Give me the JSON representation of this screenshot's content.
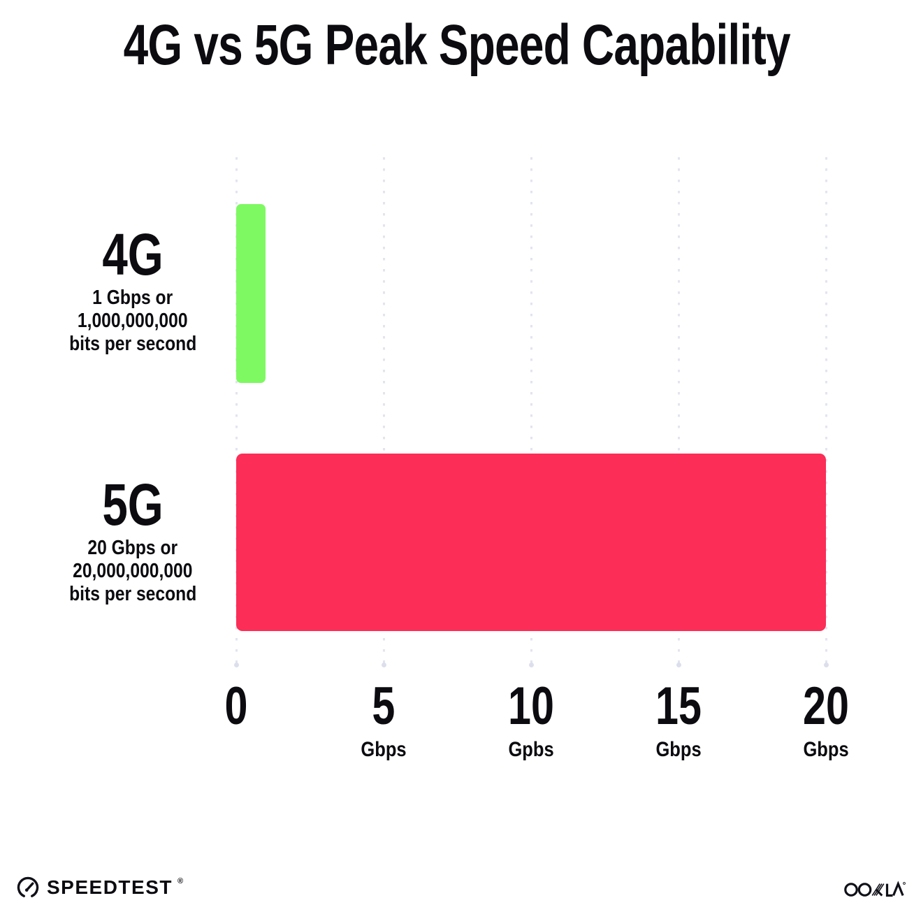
{
  "title": "4G vs 5G Peak Speed Capability",
  "chart_data": {
    "type": "bar",
    "orientation": "horizontal",
    "title": "4G vs 5G Peak Speed Capability",
    "categories": [
      "4G",
      "5G"
    ],
    "values": [
      1,
      20
    ],
    "unit": "Gbps",
    "category_sublabels": [
      [
        "1 Gbps or",
        "1,000,000,000",
        "bits per second"
      ],
      [
        "20 Gbps or",
        "20,000,000,000",
        "bits per second"
      ]
    ],
    "bar_colors": [
      "#7ef961",
      "#fc2d57"
    ],
    "xlabel": "",
    "ylabel": "",
    "xlim": [
      0,
      20
    ],
    "x_ticks": [
      {
        "value": "0",
        "unit": ""
      },
      {
        "value": "5",
        "unit": "Gbps"
      },
      {
        "value": "10",
        "unit": "Gpbs"
      },
      {
        "value": "15",
        "unit": "Gbps"
      },
      {
        "value": "20",
        "unit": "Gbps"
      }
    ],
    "grid": "vertical dotted gridlines at each tick",
    "legend": "none"
  },
  "colors": {
    "background": "#ffffff",
    "ink": "#0b0b10",
    "gridline": "#e2e4ef",
    "bar_green": "#7ef961",
    "bar_pink": "#fc2d57"
  },
  "footer": {
    "speedtest_label": "SPEEDTEST",
    "speedtest_tm": "®",
    "ookla_label": "OOKLA",
    "ookla_tm": "®"
  }
}
